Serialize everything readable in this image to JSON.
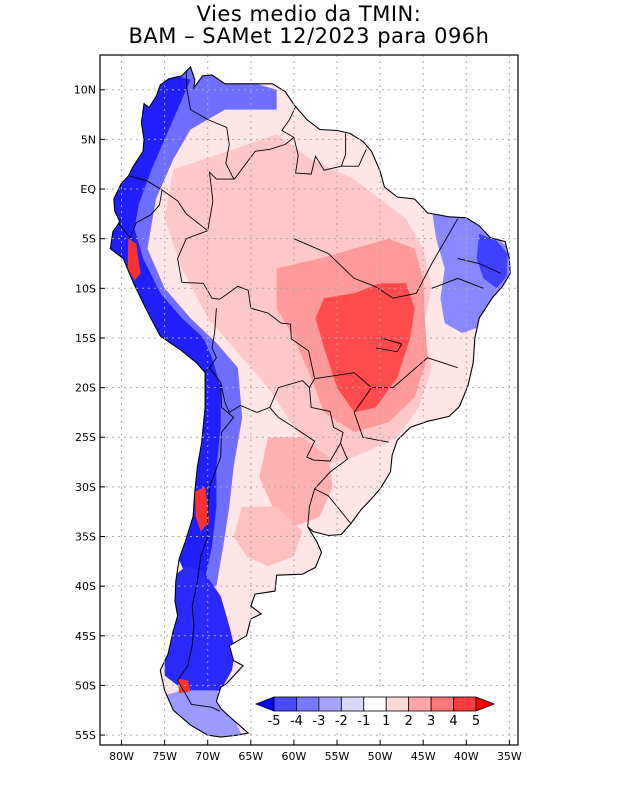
{
  "title": {
    "line1": "Vies medio da TMIN:",
    "line2": "BAM – SAMet 12/2023  para 096h"
  },
  "map": {
    "region": "South America",
    "variable": "TMIN mean bias",
    "lon_range": [
      -82.5,
      -34
    ],
    "lat_range": [
      -56,
      13.5
    ],
    "lat_ticks": [
      {
        "lat": 10,
        "label": "10N"
      },
      {
        "lat": 5,
        "label": "5N"
      },
      {
        "lat": 0,
        "label": "EQ"
      },
      {
        "lat": -5,
        "label": "5S"
      },
      {
        "lat": -10,
        "label": "10S"
      },
      {
        "lat": -15,
        "label": "15S"
      },
      {
        "lat": -20,
        "label": "20S"
      },
      {
        "lat": -25,
        "label": "25S"
      },
      {
        "lat": -30,
        "label": "30S"
      },
      {
        "lat": -35,
        "label": "35S"
      },
      {
        "lat": -40,
        "label": "40S"
      },
      {
        "lat": -45,
        "label": "45S"
      },
      {
        "lat": -50,
        "label": "50S"
      },
      {
        "lat": -55,
        "label": "55S"
      }
    ],
    "lon_ticks": [
      {
        "lon": -80,
        "label": "80W"
      },
      {
        "lon": -75,
        "label": "75W"
      },
      {
        "lon": -70,
        "label": "70W"
      },
      {
        "lon": -65,
        "label": "65W"
      },
      {
        "lon": -60,
        "label": "60W"
      },
      {
        "lon": -55,
        "label": "55W"
      },
      {
        "lon": -50,
        "label": "50W"
      },
      {
        "lon": -45,
        "label": "45W"
      },
      {
        "lon": -40,
        "label": "40W"
      },
      {
        "lon": -35,
        "label": "35W"
      }
    ]
  },
  "colorbar": {
    "labels": [
      "-5",
      "-4",
      "-3",
      "-2",
      "-1",
      "1",
      "2",
      "3",
      "4",
      "5"
    ],
    "colors": [
      "#0000ff",
      "#4a4aff",
      "#7777ff",
      "#a5a5ff",
      "#d8d8ff",
      "#ffffff",
      "#ffd8d8",
      "#ffa5a5",
      "#ff7777",
      "#ff3b3b",
      "#ff0000"
    ]
  },
  "colors": {
    "strong_blue": "#1f1fff",
    "mid_blue": "#6e6eff",
    "light_blue": "#d2d2ff",
    "very_light_red": "#ffe6e6",
    "light_red": "#ffc8c8",
    "mid_red": "#ff9a9a",
    "strong_red": "#ff4b4b",
    "grid": "#aaaaaa"
  }
}
